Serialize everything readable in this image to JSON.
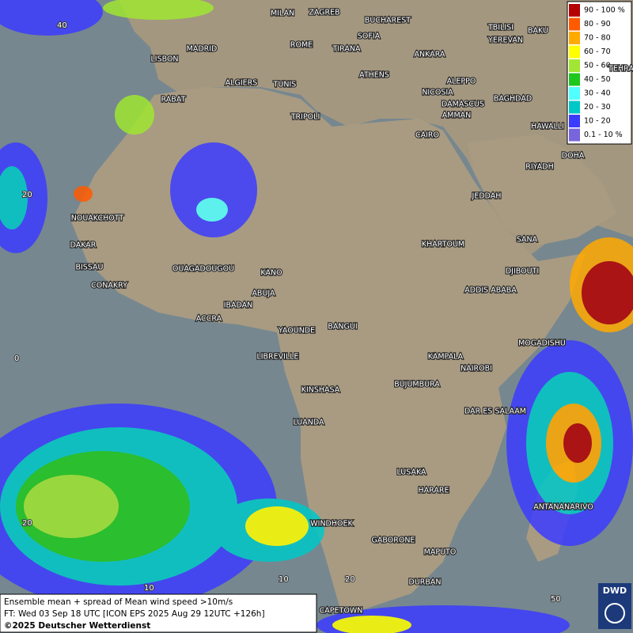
{
  "map": {
    "cities": [
      "MILAN",
      "ZAGREB",
      "BUCHAREST",
      "SOFIA",
      "ROME",
      "TIRANA",
      "ANKARA",
      "MADRID",
      "LISBON",
      "TBILISI",
      "YEREVAN",
      "BAKU",
      "TEHRA",
      "ATHENS",
      "ALGIERS",
      "TUNIS",
      "ALEPPO",
      "RABAT",
      "NICOSIA",
      "BAGHDAD",
      "TRIPOLI",
      "DAMASCUS",
      "AMMAN",
      "HAWALLI",
      "CAIRO",
      "DOHA",
      "RIYADH",
      "JEDDAH",
      "NOUAKCHOTT",
      "SANA",
      "KHARTOUM",
      "DAKAR",
      "BISSAU",
      "DJIBOUTI",
      "OUAGADOUGOU",
      "KANO",
      "CONAKRY",
      "ADDIS ABABA",
      "ABUJA",
      "IBADAN",
      "ACCRA",
      "YAOUNDE",
      "BANGUI",
      "MOGADISHU",
      "LIBREVILLE",
      "KAMPALA",
      "NAIROBI",
      "KINSHASA",
      "BUJUMBURA",
      "DAR ES SALAAM",
      "LUANDA",
      "LUSAKA",
      "HARARE",
      "ANTANANARIVO",
      "WINDHOEK",
      "GABORONE",
      "MAPUTO",
      "DURBAN",
      "CAPETOWN"
    ],
    "grid_labels": [
      "40",
      "20",
      "0",
      "20",
      "10",
      "10",
      "20",
      "50"
    ],
    "legend": [
      {
        "label": "90 - 100 %",
        "color": "#b40000"
      },
      {
        "label": "80 - 90",
        "color": "#ff5a00"
      },
      {
        "label": "70 - 80",
        "color": "#ffaa00"
      },
      {
        "label": "60 - 70",
        "color": "#ffff00"
      },
      {
        "label": "50 - 60",
        "color": "#a0e632"
      },
      {
        "label": "40 - 50",
        "color": "#1ec81e"
      },
      {
        "label": "30 - 40",
        "color": "#50ffff"
      },
      {
        "label": "20 - 30",
        "color": "#00c8c8"
      },
      {
        "label": "10 - 20",
        "color": "#3c3cff"
      },
      {
        "label": "0.1 - 10 %",
        "color": "#7864dc"
      }
    ],
    "footer": [
      "Ensemble mean + spread of Mean wind speed >10m/s",
      "FT: Wed 03 Sep 18 UTC [ICON EPS 2025 Aug 29 12UTC +126h]",
      "©2025 Deutscher Wetterdienst"
    ],
    "logo": "DWD"
  }
}
